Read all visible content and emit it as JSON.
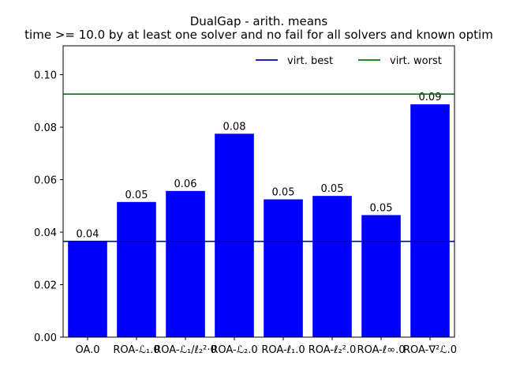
{
  "chart_data": {
    "type": "bar",
    "title": "DualGap - arith. means",
    "subtitle": "time >= 10.0 by at least one solver and no fail for all solvers and known optim",
    "xlabel": "",
    "ylabel": "",
    "categories": [
      "OA.0",
      "ROA-ℒ₁.0",
      "ROA-ℒ₁/ℓ₂²·0",
      "ROA-ℒ₂.0",
      "ROA-ℓ₁.0",
      "ROA-ℓ₂².0",
      "ROA-ℓ∞.0",
      "ROA-∇²ℒ.0"
    ],
    "values": [
      0.0365,
      0.0515,
      0.0557,
      0.0775,
      0.0525,
      0.0538,
      0.0465,
      0.0887
    ],
    "data_labels": [
      "0.04",
      "0.05",
      "0.06",
      "0.08",
      "0.05",
      "0.05",
      "0.05",
      "0.09"
    ],
    "ylim": [
      0,
      0.111
    ],
    "yticks": [
      0.0,
      0.02,
      0.04,
      0.06,
      0.08,
      0.1
    ],
    "ytick_labels": [
      "0.00",
      "0.02",
      "0.04",
      "0.06",
      "0.08",
      "0.10"
    ],
    "bar_color": "#0000ff",
    "grid": false,
    "reference_lines": [
      {
        "name": "virt. best",
        "value": 0.0365,
        "color": "#0000aa"
      },
      {
        "name": "virt. worst",
        "value": 0.0926,
        "color": "#007f00"
      }
    ],
    "legend": {
      "placement": "top-right",
      "entries": [
        "virt. best",
        "virt. worst"
      ]
    }
  }
}
